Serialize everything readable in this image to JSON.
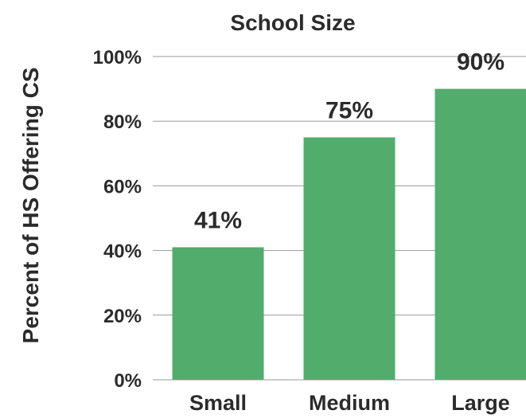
{
  "chart_data": {
    "type": "bar",
    "title": "School Size",
    "xlabel": "",
    "ylabel": "Percent of HS Offering CS",
    "categories": [
      "Small",
      "Medium",
      "Large"
    ],
    "values": [
      41,
      75,
      90
    ],
    "data_labels": [
      "41%",
      "75%",
      "90%"
    ],
    "ylim": [
      0,
      100
    ],
    "yticks": [
      0,
      20,
      40,
      60,
      80,
      100
    ],
    "ytick_labels": [
      "0%",
      "20%",
      "40%",
      "60%",
      "80%",
      "100%"
    ],
    "grid": true,
    "bar_color": "#52ad6d"
  }
}
